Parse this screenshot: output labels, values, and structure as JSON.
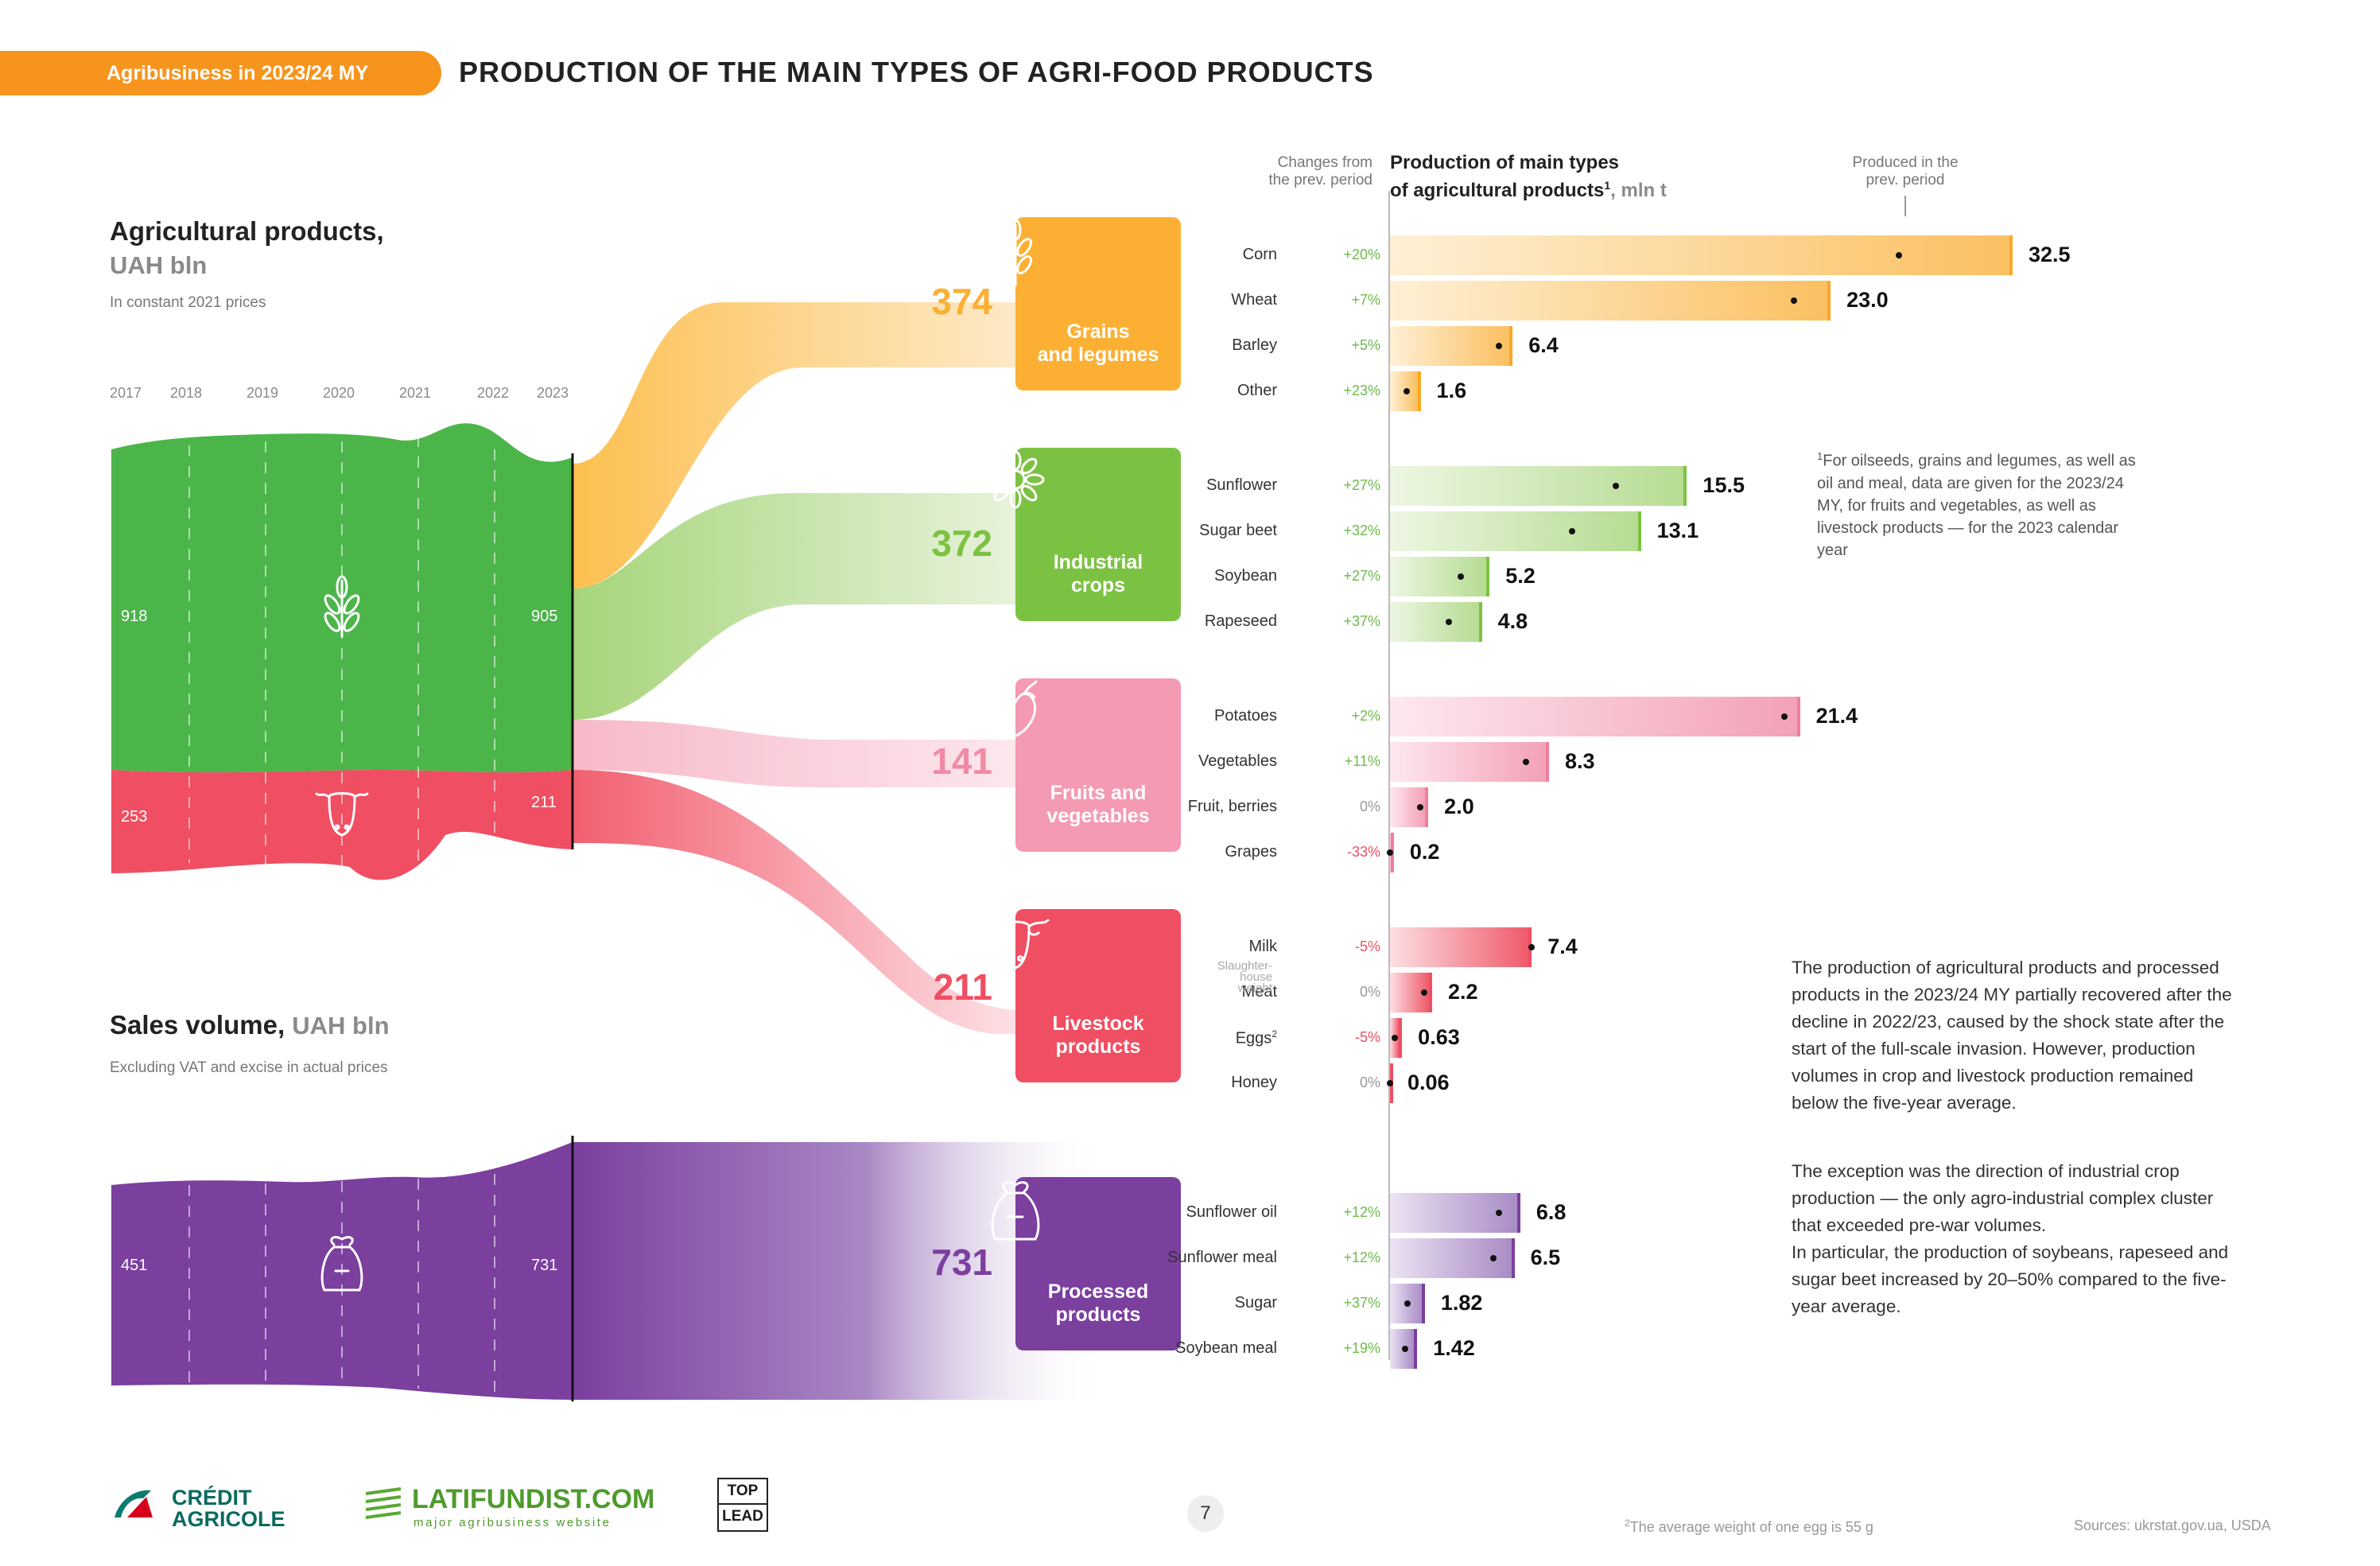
{
  "header": {
    "tag": "Agribusiness in 2023/24 MY",
    "title": "PRODUCTION OF THE MAIN TYPES OF AGRI-FOOD PRODUCTS"
  },
  "agri": {
    "title": "Agricultural products,",
    "unit": "UAH bln",
    "subtitle": "In constant 2021 prices",
    "years": [
      "2017",
      "2018",
      "2019",
      "2020",
      "2021",
      "2022",
      "2023"
    ],
    "crop_start": "918",
    "crop_end": "905",
    "livestock_start": "253",
    "livestock_end": "211"
  },
  "sales": {
    "title": "Sales volume,",
    "unit": "UAH bln",
    "subtitle": "Excluding VAT and excise in actual prices",
    "start": "451",
    "end": "731"
  },
  "categories": [
    {
      "label1": "Grains",
      "label2": "and legumes",
      "value": "374",
      "color": "#fbb034",
      "icon": "wheat-icon"
    },
    {
      "label1": "Industrial",
      "label2": "crops",
      "value": "372",
      "color": "#7cc242",
      "icon": "sunflower-icon"
    },
    {
      "label1": "Fruits and",
      "label2": "vegetables",
      "value": "141",
      "color": "#f49ab3",
      "icon": "eggplant-icon"
    },
    {
      "label1": "Livestock",
      "label2": "products",
      "value": "211",
      "color": "#f04e62",
      "icon": "cow-icon"
    },
    {
      "label1": "Processed",
      "label2": "products",
      "value": "731",
      "color": "#7b3f9e",
      "icon": "sack-icon"
    }
  ],
  "bar_header": {
    "changes_line1": "Changes from",
    "changes_line2": "the prev. period",
    "main_line1": "Production of main types",
    "main_line2": "of agricultural products",
    "main_sup": "1",
    "main_unit": ", mln t",
    "prev_line1": "Produced in the",
    "prev_line2": "prev. period"
  },
  "chart_data": {
    "type": "bar",
    "title": "Production of main types of agricultural products, mln t",
    "orientation": "horizontal",
    "xlim": [
      0,
      34
    ],
    "groups": [
      {
        "name": "Grains and legumes",
        "color": "#fbb034",
        "items": [
          {
            "name": "Corn",
            "value": 32.5,
            "label": "32.5",
            "change": "+20%",
            "prev": 27.0
          },
          {
            "name": "Wheat",
            "value": 23.0,
            "label": "23.0",
            "change": "+7%",
            "prev": 21.5
          },
          {
            "name": "Barley",
            "value": 6.4,
            "label": "6.4",
            "change": "+5%",
            "prev": 6.1
          },
          {
            "name": "Other",
            "value": 1.6,
            "label": "1.6",
            "change": "+23%",
            "prev": 1.3
          }
        ]
      },
      {
        "name": "Industrial crops",
        "color": "#7cc242",
        "items": [
          {
            "name": "Sunflower",
            "value": 15.5,
            "label": "15.5",
            "change": "+27%",
            "prev": 12.2
          },
          {
            "name": "Sugar beet",
            "value": 13.1,
            "label": "13.1",
            "change": "+32%",
            "prev": 9.9
          },
          {
            "name": "Soybean",
            "value": 5.2,
            "label": "5.2",
            "change": "+27%",
            "prev": 4.1
          },
          {
            "name": "Rapeseed",
            "value": 4.8,
            "label": "4.8",
            "change": "+37%",
            "prev": 3.5
          }
        ]
      },
      {
        "name": "Fruits and vegetables",
        "color": "#f49ab3",
        "items": [
          {
            "name": "Potatoes",
            "value": 21.4,
            "label": "21.4",
            "change": "+2%",
            "prev": 21.0
          },
          {
            "name": "Vegetables",
            "value": 8.3,
            "label": "8.3",
            "change": "+11%",
            "prev": 7.5
          },
          {
            "name": "Fruit, berries",
            "value": 2.0,
            "label": "2.0",
            "change": "0%",
            "prev": 2.0
          },
          {
            "name": "Grapes",
            "value": 0.2,
            "label": "0.2",
            "change": "-33%",
            "prev": 0.3
          }
        ]
      },
      {
        "name": "Livestock products",
        "color": "#f04e62",
        "items": [
          {
            "name": "Milk",
            "value": 7.4,
            "label": "7.4",
            "change": "-5%",
            "prev": 7.8
          },
          {
            "name": "Meat",
            "value": 2.2,
            "label": "2.2",
            "change": "0%",
            "prev": 2.2,
            "note": "Slaughter-house weight"
          },
          {
            "name": "Eggs",
            "value": 0.63,
            "label": "0.63",
            "change": "-5%",
            "prev": 0.66,
            "sup": "2"
          },
          {
            "name": "Honey",
            "value": 0.06,
            "label": "0.06",
            "change": "0%",
            "prev": 0.06
          }
        ]
      },
      {
        "name": "Processed products",
        "color": "#7b3f9e",
        "items": [
          {
            "name": "Sunflower oil",
            "value": 6.8,
            "label": "6.8",
            "change": "+12%",
            "prev": 6.1
          },
          {
            "name": "Sunflower meal",
            "value": 6.5,
            "label": "6.5",
            "change": "+12%",
            "prev": 5.8
          },
          {
            "name": "Sugar",
            "value": 1.82,
            "label": "1.82",
            "change": "+37%",
            "prev": 1.33
          },
          {
            "name": "Soybean meal",
            "value": 1.42,
            "label": "1.42",
            "change": "+19%",
            "prev": 1.19
          }
        ]
      }
    ]
  },
  "meat_note": {
    "line1": "Slaughter-",
    "line2": "house",
    "line3": "weight"
  },
  "footnote1": {
    "sup": "1",
    "text": "For oilseeds, grains and legumes, as well as oil and meal, data are given for the 2023/24 MY, for fruits and vegetables, as well as livestock products — for the 2023 calendar year"
  },
  "paragraph1": "The production of agricultural products and processed products in the 2023/24 MY partially recovered after the decline in 2022/23, caused by the shock state after the start of the full-scale invasion. However, production volumes in crop and livestock production remained below the five-year average.",
  "paragraph2": "The exception was the direction of industrial crop production — the only agro-industrial complex cluster that exceeded pre-war volumes.",
  "paragraph3": "In particular, the production of soybeans, rapeseed and sugar beet increased by 20–50% compared to the five-year average.",
  "footer": {
    "logo1_line1": "CRÉDIT",
    "logo1_line2": "AGRICOLE",
    "logo2_name": "LATIFUNDIST.COM",
    "logo2_tag": "major agribusiness website",
    "logo3_line1": "TOP",
    "logo3_line2": "LEAD",
    "page": "7",
    "footnote2_sup": "2",
    "footnote2": "The average weight of one egg is 55 g",
    "sources": "Sources: ukrstat.gov.ua, USDA"
  }
}
